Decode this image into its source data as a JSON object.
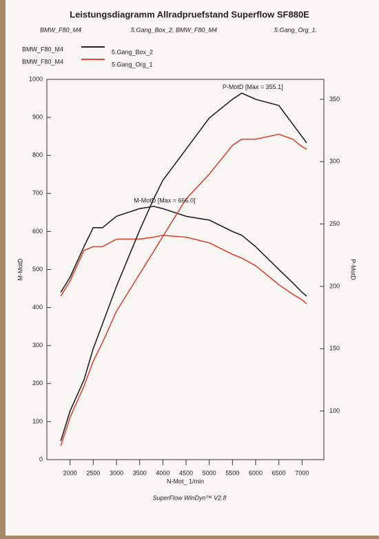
{
  "chart_data": {
    "type": "line",
    "title": "Leistungsdiagramm Allradpruefstand Superflow SF880E",
    "subtitle": [
      "BMW_F80_M4",
      "5.Gang_Box_2, BMW_F80_M4",
      "5.Gang_Org_1."
    ],
    "legend": [
      {
        "car": "BMW_F80_M4",
        "run": "5.Gang_Box_2",
        "color": "#222222"
      },
      {
        "car": "BMW_F80_M4",
        "run": "5.Gang_Org_1",
        "color": "#e0443c"
      }
    ],
    "x_label": "N-Mot_ 1/min",
    "y_label": "M-MotD",
    "y2_label": "P-MotD",
    "footer": "SuperFlow WinDyn™ V2.8",
    "x": [
      1800,
      2000,
      2300,
      2500,
      2700,
      3000,
      3500,
      3800,
      4000,
      4500,
      5000,
      5500,
      5700,
      6000,
      6500,
      6800,
      7000,
      7100
    ],
    "series": [
      {
        "color": "#222222",
        "axis": "y",
        "values": [
          440,
          480,
          560,
          610,
          610,
          640,
          660,
          666,
          660,
          640,
          630,
          600,
          590,
          560,
          500,
          465,
          440,
          430
        ]
      },
      {
        "color": "#e0443c",
        "axis": "y",
        "values": [
          430,
          470,
          550,
          560,
          560,
          580,
          580,
          585,
          590,
          585,
          570,
          540,
          530,
          510,
          460,
          435,
          420,
          410
        ]
      },
      {
        "color": "#222222",
        "axis": "y2",
        "values": [
          76,
          100,
          125,
          150,
          170,
          200,
          245,
          270,
          285,
          310,
          335,
          350,
          355,
          350,
          345,
          330,
          320,
          315
        ]
      },
      {
        "color": "#e0443c",
        "axis": "y2",
        "values": [
          72,
          95,
          120,
          140,
          155,
          180,
          210,
          228,
          240,
          270,
          290,
          313,
          318,
          318,
          322,
          318,
          312,
          310
        ]
      }
    ],
    "annotations": [
      {
        "text": "M-MotD [Max = 666.0]",
        "x": 3800,
        "y": 666,
        "axis": "y"
      },
      {
        "text": "P-MotD [Max = 355.1]",
        "x": 5700,
        "y": 355,
        "axis": "y2"
      }
    ],
    "xlim": [
      1500,
      7470
    ],
    "xticks": [
      2000,
      2500,
      3000,
      3500,
      4000,
      4500,
      5000,
      5500,
      6000,
      6500,
      7000
    ],
    "ylim": [
      0,
      1000
    ],
    "yticks": [
      0,
      100,
      200,
      300,
      400,
      500,
      600,
      700,
      800,
      900,
      1000
    ],
    "y2lim": [
      61,
      366
    ],
    "y2ticks": [
      100,
      150,
      200,
      250,
      300,
      350
    ]
  }
}
